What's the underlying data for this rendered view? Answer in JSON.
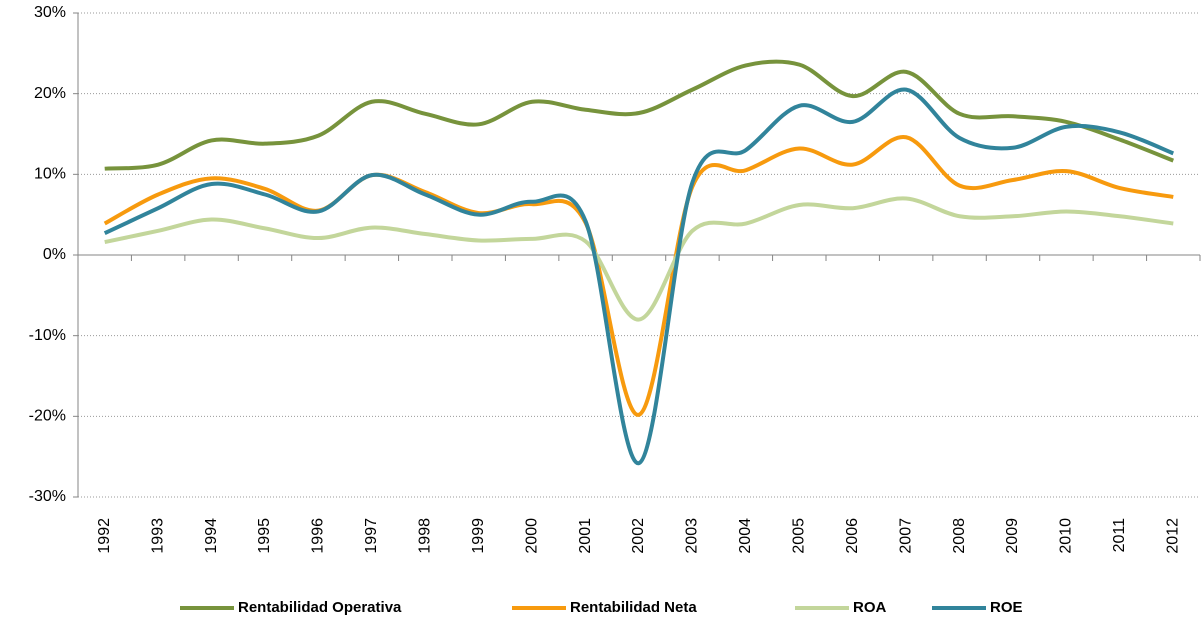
{
  "chart_data": {
    "type": "line",
    "categories": [
      "1992",
      "1993",
      "1994",
      "1995",
      "1996",
      "1997",
      "1998",
      "1999",
      "2000",
      "2001",
      "2002",
      "2003",
      "2004",
      "2005",
      "2006",
      "2007",
      "2008",
      "2009",
      "2010",
      "2011",
      "2012"
    ],
    "series": [
      {
        "name": "Rentabilidad Operativa",
        "color": "#77933c",
        "values": [
          10.7,
          11.2,
          14.2,
          13.8,
          14.8,
          19.0,
          17.5,
          16.2,
          19.0,
          18.0,
          17.6,
          20.5,
          23.5,
          23.6,
          19.7,
          22.7,
          17.5,
          17.2,
          16.5,
          14.3,
          11.7
        ]
      },
      {
        "name": "Rentabilidad Neta",
        "color": "#f79a0e",
        "values": [
          3.9,
          7.5,
          9.5,
          8.2,
          5.5,
          9.9,
          7.8,
          5.2,
          6.3,
          4.0,
          -19.8,
          8.5,
          10.5,
          13.2,
          11.2,
          14.6,
          8.6,
          9.3,
          10.4,
          8.3,
          7.2
        ]
      },
      {
        "name": "ROA",
        "color": "#c3d69b",
        "values": [
          1.6,
          3.0,
          4.4,
          3.3,
          2.1,
          3.4,
          2.6,
          1.8,
          2.0,
          1.7,
          -8.0,
          3.0,
          3.9,
          6.2,
          5.8,
          7.0,
          4.8,
          4.8,
          5.4,
          4.8,
          3.9
        ]
      },
      {
        "name": "ROE",
        "color": "#31849b",
        "values": [
          2.7,
          5.8,
          8.8,
          7.5,
          5.4,
          9.9,
          7.5,
          5.0,
          6.6,
          4.2,
          -25.8,
          9.0,
          13.0,
          18.5,
          16.5,
          20.5,
          14.5,
          13.3,
          15.9,
          15.2,
          12.6
        ]
      }
    ],
    "ylim": [
      -30,
      30
    ],
    "yticks": [
      {
        "value": -30,
        "label": "-30%"
      },
      {
        "value": -20,
        "label": "-20%"
      },
      {
        "value": -10,
        "label": "-10%"
      },
      {
        "value": 0,
        "label": "0%"
      },
      {
        "value": 10,
        "label": "10%"
      },
      {
        "value": 20,
        "label": "20%"
      },
      {
        "value": 30,
        "label": "30%"
      }
    ],
    "grid": true,
    "legend": "bottom"
  }
}
